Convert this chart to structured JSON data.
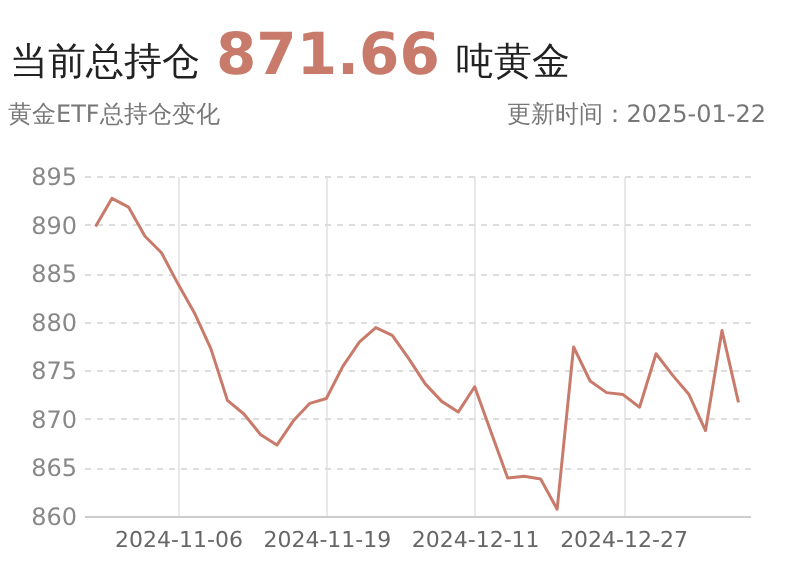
{
  "chart_data": {
    "type": "line",
    "title": "当前总持仓 871.66 吨黄金",
    "subtitle": "黄金ETF总持仓变化",
    "annotations": [
      "更新时间：2025-01-22"
    ],
    "categories": [
      null,
      null,
      null,
      null,
      null,
      "2024-11-06",
      null,
      null,
      null,
      null,
      null,
      null,
      null,
      null,
      "2024-11-19",
      null,
      null,
      null,
      null,
      null,
      null,
      null,
      null,
      "2024-12-11",
      null,
      null,
      null,
      null,
      null,
      null,
      null,
      null,
      "2024-12-27",
      null,
      null,
      null,
      null,
      null,
      null,
      null
    ],
    "series": [
      {
        "color": "#c97b6b",
        "values": [
          889.8,
          892.7,
          891.8,
          888.8,
          887.1,
          883.9,
          880.9,
          877.2,
          871.9,
          870.5,
          868.4,
          867.3,
          869.8,
          871.6,
          872.1,
          875.4,
          877.9,
          879.4,
          878.6,
          876.2,
          873.6,
          871.8,
          870.7,
          873.3,
          868.6,
          863.9,
          864.1,
          863.8,
          860.7,
          877.4,
          873.9,
          872.7,
          872.5,
          871.2,
          876.7,
          874.5,
          872.5,
          868.8,
          879.1,
          871.7
        ]
      }
    ],
    "ylim": [
      860,
      895
    ],
    "yticks": [
      860,
      865,
      870,
      875,
      880,
      885,
      890,
      895
    ],
    "grid": true,
    "marker": "none",
    "line_style": "solid"
  }
}
